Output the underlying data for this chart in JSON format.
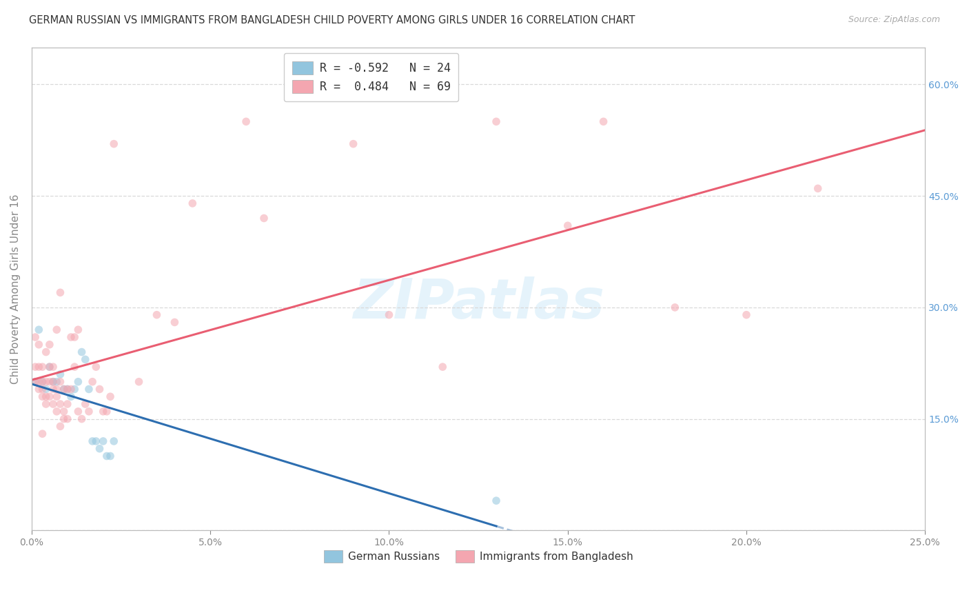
{
  "title": "GERMAN RUSSIAN VS IMMIGRANTS FROM BANGLADESH CHILD POVERTY AMONG GIRLS UNDER 16 CORRELATION CHART",
  "source": "Source: ZipAtlas.com",
  "ylabel": "Child Poverty Among Girls Under 16",
  "background_color": "#ffffff",
  "watermark": "ZIPatlas",
  "series": [
    {
      "name": "German Russians",
      "R": -0.592,
      "N": 24,
      "color": "#92c5de",
      "line_color": "#2166ac",
      "x": [
        0.1,
        0.2,
        0.3,
        0.4,
        0.5,
        0.6,
        0.7,
        0.8,
        0.9,
        1.0,
        1.1,
        1.2,
        1.3,
        1.4,
        1.5,
        1.6,
        1.7,
        1.8,
        1.9,
        2.0,
        2.1,
        2.2,
        2.3,
        13.0
      ],
      "y": [
        20.0,
        27.0,
        20.0,
        19.0,
        22.0,
        20.0,
        20.0,
        21.0,
        19.0,
        19.0,
        18.0,
        19.0,
        20.0,
        24.0,
        23.0,
        19.0,
        12.0,
        12.0,
        11.0,
        12.0,
        10.0,
        10.0,
        12.0,
        4.0
      ]
    },
    {
      "name": "Immigrants from Bangladesh",
      "R": 0.484,
      "N": 69,
      "color": "#f4a6b0",
      "line_color": "#e8556a",
      "x": [
        0.1,
        0.1,
        0.1,
        0.2,
        0.2,
        0.2,
        0.2,
        0.3,
        0.3,
        0.3,
        0.3,
        0.3,
        0.4,
        0.4,
        0.4,
        0.4,
        0.5,
        0.5,
        0.5,
        0.5,
        0.6,
        0.6,
        0.6,
        0.6,
        0.7,
        0.7,
        0.7,
        0.7,
        0.8,
        0.8,
        0.8,
        0.8,
        0.9,
        0.9,
        0.9,
        1.0,
        1.0,
        1.0,
        1.1,
        1.1,
        1.2,
        1.2,
        1.3,
        1.3,
        1.4,
        1.5,
        1.6,
        1.7,
        1.8,
        1.9,
        2.0,
        2.1,
        2.2,
        2.3,
        3.0,
        3.5,
        4.0,
        4.5,
        6.0,
        6.5,
        9.0,
        10.0,
        11.5,
        13.0,
        15.0,
        16.0,
        18.0,
        20.0,
        22.0
      ],
      "y": [
        20.0,
        22.0,
        26.0,
        19.0,
        20.0,
        22.0,
        25.0,
        13.0,
        18.0,
        19.0,
        20.0,
        22.0,
        17.0,
        18.0,
        20.0,
        24.0,
        18.0,
        20.0,
        22.0,
        25.0,
        17.0,
        19.0,
        20.0,
        22.0,
        16.0,
        18.0,
        19.0,
        27.0,
        14.0,
        17.0,
        20.0,
        32.0,
        15.0,
        16.0,
        19.0,
        15.0,
        17.0,
        19.0,
        19.0,
        26.0,
        22.0,
        26.0,
        16.0,
        27.0,
        15.0,
        17.0,
        16.0,
        20.0,
        22.0,
        19.0,
        16.0,
        16.0,
        18.0,
        52.0,
        20.0,
        29.0,
        28.0,
        44.0,
        55.0,
        42.0,
        52.0,
        29.0,
        22.0,
        55.0,
        41.0,
        55.0,
        30.0,
        29.0,
        46.0
      ]
    }
  ],
  "xlim": [
    0,
    25.0
  ],
  "ylim": [
    0,
    65.0
  ],
  "xticks": [
    0.0,
    5.0,
    10.0,
    15.0,
    20.0,
    25.0
  ],
  "xtick_labels": [
    "0.0%",
    "5.0%",
    "10.0%",
    "15.0%",
    "20.0%",
    "25.0%"
  ],
  "yticks": [
    0.0,
    15.0,
    30.0,
    45.0,
    60.0
  ],
  "ytick_labels_right": [
    "",
    "15.0%",
    "30.0%",
    "45.0%",
    "60.0%"
  ],
  "grid_color": "#d9d9d9",
  "grid_style": "--",
  "title_color": "#333333",
  "source_color": "#aaaaaa",
  "axis_color": "#bbbbbb",
  "tick_color": "#888888",
  "right_tick_color": "#5b9bd5",
  "legend_label1": "German Russians",
  "legend_label2": "Immigrants from Bangladesh",
  "marker_size": 70,
  "marker_alpha": 0.55,
  "line_alpha": 0.95,
  "line_width": 2.2
}
